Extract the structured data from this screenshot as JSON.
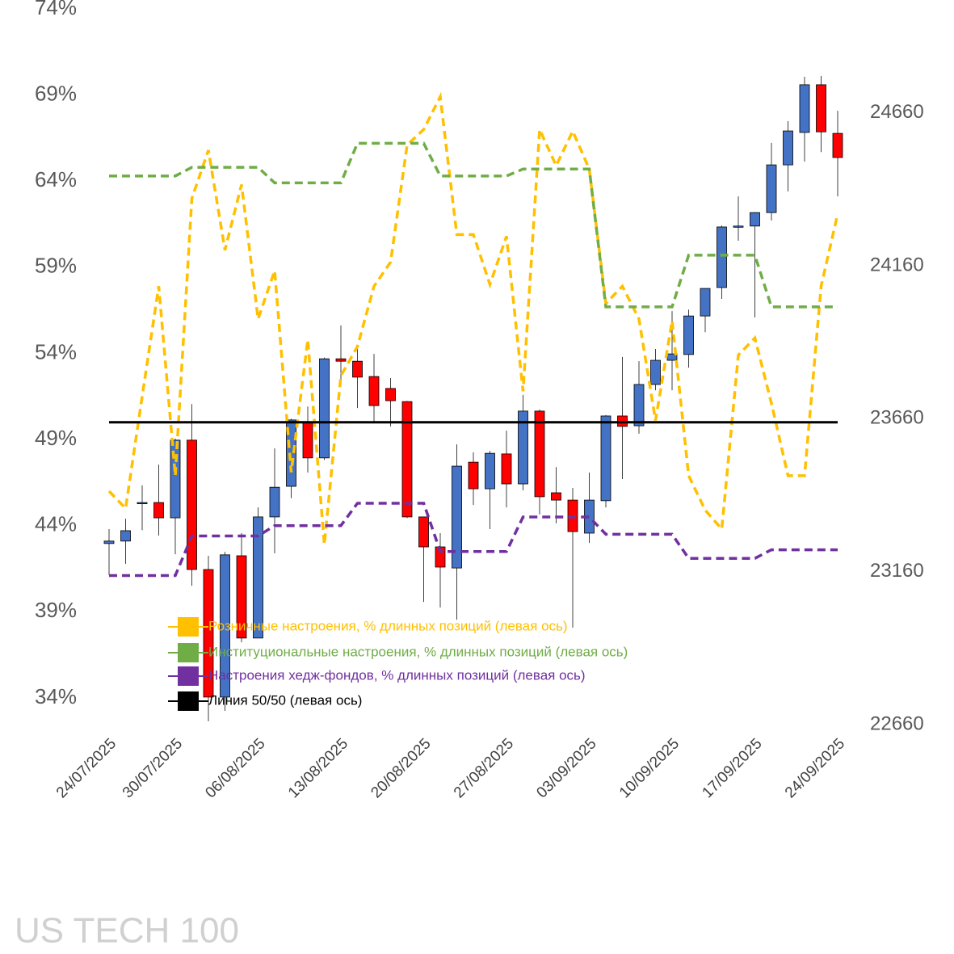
{
  "chart_data": {
    "type": "candlestick",
    "title": "US TECH 100",
    "categories": [
      "24/07/2025",
      null,
      null,
      null,
      "30/07/2025",
      null,
      null,
      null,
      null,
      "06/08/2025",
      null,
      null,
      null,
      null,
      "13/08/2025",
      null,
      null,
      null,
      null,
      "20/08/2025",
      null,
      null,
      null,
      null,
      "27/08/2025",
      null,
      null,
      null,
      null,
      "03/09/2025",
      null,
      null,
      null,
      null,
      "10/09/2025",
      null,
      null,
      null,
      null,
      "17/09/2025",
      null,
      null,
      null,
      null,
      "24/09/2025"
    ],
    "ohlc": {
      "axis": "y2",
      "up_color": "#4472c4",
      "down_color": "#ff0000",
      "open": [
        23252,
        23260,
        23386,
        23386,
        23336,
        23590,
        23167,
        22750,
        23212,
        22943,
        23339,
        23439,
        23648,
        23532,
        23856,
        23848,
        23798,
        23759,
        23716,
        23339,
        23241,
        23172,
        23518,
        23431,
        23545,
        23447,
        23685,
        23418,
        23394,
        23286,
        23392,
        23669,
        23637,
        23772,
        23851,
        23870,
        23996,
        24089,
        24287,
        24290,
        24334,
        24490,
        24596,
        24752,
        24593
      ],
      "high": [
        23299,
        23333,
        23442,
        23510,
        23595,
        23708,
        23212,
        23225,
        23286,
        23370,
        23563,
        23660,
        23700,
        23860,
        23965,
        23893,
        23872,
        23793,
        23718,
        23340,
        23286,
        23576,
        23550,
        23555,
        23621,
        23738,
        23690,
        23502,
        23434,
        23484,
        23672,
        23862,
        23848,
        23888,
        24012,
        24017,
        24086,
        24292,
        24387,
        24335,
        24562,
        24633,
        24778,
        24781,
        24667
      ],
      "low": [
        23149,
        23186,
        23296,
        23278,
        23217,
        23114,
        22671,
        22705,
        22929,
        22943,
        23220,
        23400,
        23484,
        23525,
        23788,
        23695,
        23645,
        23635,
        23335,
        23061,
        23043,
        23003,
        23378,
        23299,
        23370,
        23426,
        23347,
        23318,
        22977,
        23254,
        23370,
        23463,
        23611,
        23753,
        23753,
        23827,
        23943,
        24052,
        24242,
        23991,
        24308,
        24403,
        24501,
        24532,
        24387
      ],
      "close": [
        23260,
        23294,
        23386,
        23336,
        23590,
        23167,
        22750,
        23215,
        22943,
        23339,
        23436,
        23656,
        23532,
        23856,
        23848,
        23796,
        23703,
        23719,
        23339,
        23241,
        23175,
        23505,
        23431,
        23547,
        23447,
        23685,
        23405,
        23394,
        23291,
        23394,
        23669,
        23635,
        23772,
        23851,
        23872,
        23996,
        24086,
        24287,
        24290,
        24334,
        24490,
        24601,
        24752,
        24598,
        24514
      ]
    },
    "series": [
      {
        "name": "Розничные настроения, % длинных позиций (левая ось)",
        "color": "#ffc000",
        "style": "dashed",
        "values": [
          46.0,
          45.0,
          51.5,
          57.9,
          46.9,
          63.0,
          65.8,
          60.0,
          63.8,
          56.0,
          58.8,
          47.1,
          54.8,
          42.9,
          52.7,
          54.4,
          57.9,
          59.3,
          66.1,
          67.0,
          68.9,
          60.9,
          60.9,
          58.0,
          60.8,
          51.8,
          67.0,
          64.9,
          66.9,
          64.7,
          56.9,
          57.9,
          56.0,
          50.1,
          55.9,
          46.9,
          44.9,
          43.8,
          53.9,
          54.9,
          51.1,
          46.9,
          46.9,
          57.9,
          62.1
        ]
      },
      {
        "name": "Институциональные настроения, % длинных позиций (левая ось)",
        "color": "#70ad47",
        "style": "dashed",
        "values": [
          64.3,
          64.3,
          64.3,
          64.3,
          64.3,
          64.8,
          64.8,
          64.8,
          64.8,
          64.8,
          63.9,
          63.9,
          63.9,
          63.9,
          63.9,
          66.2,
          66.2,
          66.2,
          66.2,
          66.2,
          64.3,
          64.3,
          64.3,
          64.3,
          64.3,
          64.7,
          64.7,
          64.7,
          64.7,
          64.7,
          56.7,
          56.7,
          56.7,
          56.7,
          56.7,
          59.7,
          59.7,
          59.7,
          59.7,
          59.7,
          56.7,
          56.7,
          56.7,
          56.7,
          56.7
        ]
      },
      {
        "name": "Настроения хедж-фондов, % длинных позиций (левая ось)",
        "color": "#7030a0",
        "style": "dashed",
        "values": [
          41.1,
          41.1,
          41.1,
          41.1,
          41.1,
          43.4,
          43.4,
          43.4,
          43.4,
          43.4,
          44.0,
          44.0,
          44.0,
          44.0,
          44.0,
          45.3,
          45.3,
          45.3,
          45.3,
          45.3,
          42.5,
          42.5,
          42.5,
          42.5,
          42.5,
          44.5,
          44.5,
          44.5,
          44.5,
          44.5,
          43.5,
          43.5,
          43.5,
          43.5,
          43.5,
          42.1,
          42.1,
          42.1,
          42.1,
          42.1,
          42.6,
          42.6,
          42.6,
          42.6,
          42.6
        ]
      },
      {
        "name": "Линия 50/50 (левая ось)",
        "color": "#000000",
        "style": "solid",
        "values": [
          50,
          50,
          50,
          50,
          50,
          50,
          50,
          50,
          50,
          50,
          50,
          50,
          50,
          50,
          50,
          50,
          50,
          50,
          50,
          50,
          50,
          50,
          50,
          50,
          50,
          50,
          50,
          50,
          50,
          50,
          50,
          50,
          50,
          50,
          50,
          50,
          50,
          50,
          50,
          50,
          50,
          50,
          50,
          50,
          50
        ]
      }
    ],
    "ylim": [
      32.45,
      74
    ],
    "yticks": [
      {
        "value": 34,
        "label": "34%"
      },
      {
        "value": 39,
        "label": "39%"
      },
      {
        "value": 44,
        "label": "44%"
      },
      {
        "value": 49,
        "label": "49%"
      },
      {
        "value": 54,
        "label": "54%"
      },
      {
        "value": 59,
        "label": "59%"
      },
      {
        "value": 64,
        "label": "64%"
      },
      {
        "value": 69,
        "label": "69%"
      },
      {
        "value": 74,
        "label": "74%"
      }
    ],
    "y2lim": [
      22660,
      25000
    ],
    "y2ticks": [
      22660,
      23160,
      23660,
      24160,
      24660
    ]
  }
}
